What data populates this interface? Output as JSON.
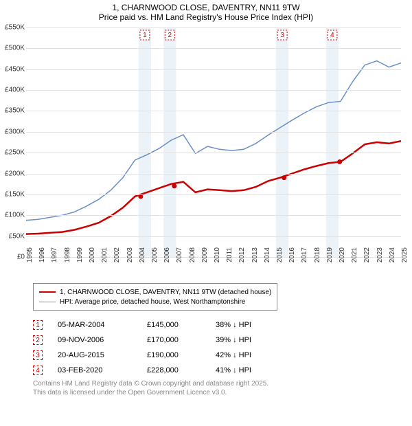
{
  "title_line1": "1, CHARNWOOD CLOSE, DAVENTRY, NN11 9TW",
  "title_line2": "Price paid vs. HM Land Registry's House Price Index (HPI)",
  "chart": {
    "type": "line",
    "x_start_year": 1995,
    "x_end_year": 2025,
    "y_min": 0,
    "y_max": 550000,
    "y_tick_step": 50000,
    "y_tick_labels": [
      "£0",
      "£50K",
      "£100K",
      "£150K",
      "£200K",
      "£250K",
      "£300K",
      "£350K",
      "£400K",
      "£450K",
      "£500K",
      "£550K"
    ],
    "x_ticks": [
      1995,
      1996,
      1997,
      1998,
      1999,
      2000,
      2001,
      2002,
      2003,
      2004,
      2005,
      2006,
      2007,
      2008,
      2009,
      2010,
      2011,
      2012,
      2013,
      2014,
      2015,
      2016,
      2017,
      2018,
      2019,
      2020,
      2021,
      2022,
      2023,
      2024,
      2025
    ],
    "background_color": "#ffffff",
    "grid_color": "#e2e2e2",
    "shade_color": "#dbe8f2",
    "series": [
      {
        "name": "property",
        "color": "#cc0000",
        "width": 2.5,
        "values": [
          55,
          56,
          58,
          60,
          65,
          73,
          82,
          98,
          118,
          145,
          155,
          165,
          175,
          180,
          155,
          162,
          160,
          158,
          160,
          168,
          182,
          190,
          200,
          210,
          218,
          225,
          228,
          248,
          270,
          275,
          272,
          278
        ]
      },
      {
        "name": "hpi",
        "color": "#6a8fc6",
        "width": 1.5,
        "values": [
          88,
          90,
          95,
          100,
          108,
          122,
          138,
          160,
          190,
          232,
          245,
          260,
          280,
          293,
          248,
          265,
          258,
          255,
          258,
          272,
          292,
          310,
          328,
          345,
          360,
          370,
          373,
          420,
          460,
          470,
          455,
          465
        ]
      }
    ],
    "shaded_years": [
      [
        2004,
        2005
      ],
      [
        2006,
        2007
      ],
      [
        2015,
        2016
      ],
      [
        2019,
        2020
      ]
    ],
    "marker_years": [
      2004,
      2006,
      2015,
      2019
    ],
    "sale_points": [
      {
        "year": 2004.17,
        "value": 145
      },
      {
        "year": 2006.86,
        "value": 170
      },
      {
        "year": 2015.64,
        "value": 190
      },
      {
        "year": 2020.09,
        "value": 228
      }
    ]
  },
  "legend": {
    "row1": "1, CHARNWOOD CLOSE, DAVENTRY, NN11 9TW (detached house)",
    "row2": "HPI: Average price, detached house, West Northamptonshire"
  },
  "table": [
    {
      "n": "1",
      "date": "05-MAR-2004",
      "price": "£145,000",
      "diff": "38% ↓ HPI"
    },
    {
      "n": "2",
      "date": "09-NOV-2006",
      "price": "£170,000",
      "diff": "39% ↓ HPI"
    },
    {
      "n": "3",
      "date": "20-AUG-2015",
      "price": "£190,000",
      "diff": "42% ↓ HPI"
    },
    {
      "n": "4",
      "date": "03-FEB-2020",
      "price": "£228,000",
      "diff": "41% ↓ HPI"
    }
  ],
  "footer_line1": "Contains HM Land Registry data © Crown copyright and database right 2025.",
  "footer_line2": "This data is licensed under the Open Government Licence v3.0."
}
